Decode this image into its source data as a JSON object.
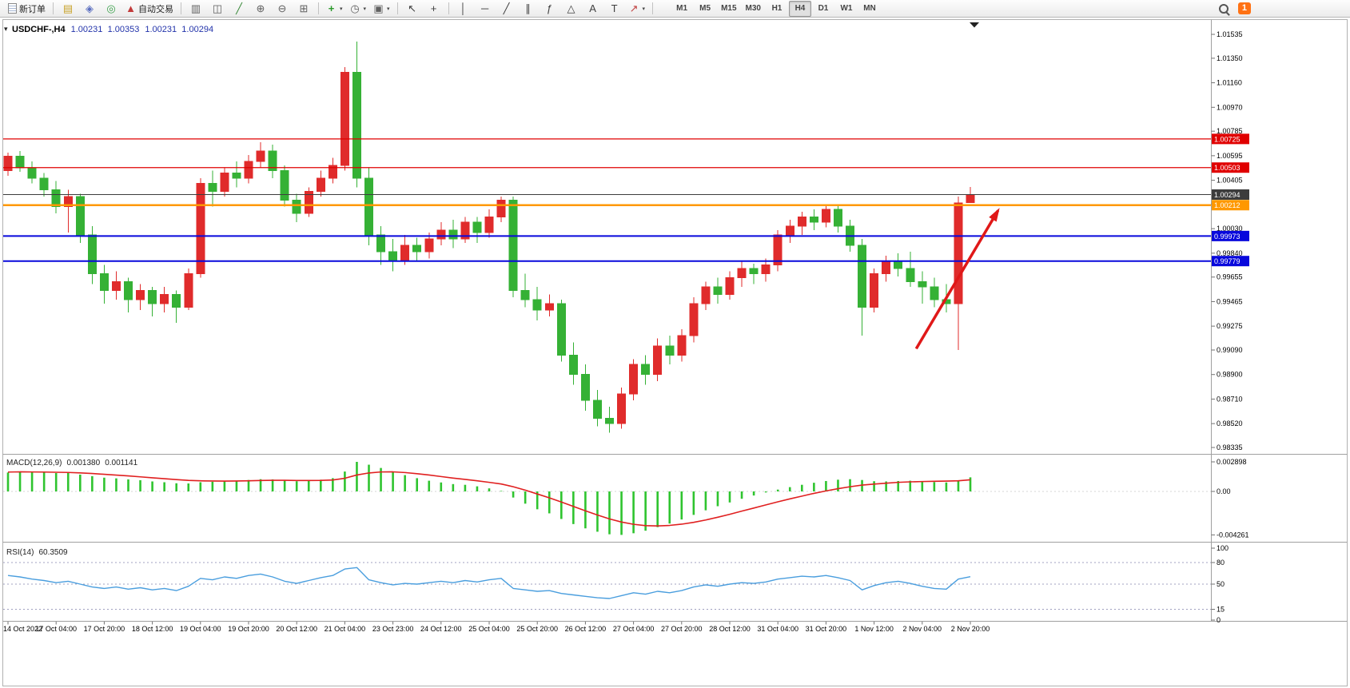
{
  "app": {
    "toolbar": {
      "items": [
        {
          "name": "new-order-button",
          "icon": "doc",
          "label": "新订单"
        },
        {
          "type": "sep"
        },
        {
          "name": "market-watch-button",
          "icon": "market-watch"
        },
        {
          "name": "navigator-button",
          "icon": "navigator"
        },
        {
          "name": "terminal-button",
          "icon": "terminal"
        },
        {
          "name": "auto-trading-button",
          "icon": "auto-trading",
          "label": "自动交易"
        },
        {
          "type": "sep"
        },
        {
          "name": "bar-chart-button",
          "icon": "bar-chart"
        },
        {
          "name": "candlestick-chart-button",
          "icon": "candlestick"
        },
        {
          "name": "line-chart-button",
          "icon": "line-chart"
        },
        {
          "name": "zoom-in-button",
          "icon": "zoom-in"
        },
        {
          "name": "zoom-out-button",
          "icon": "zoom-out"
        },
        {
          "name": "tile-windows-button",
          "icon": "tile"
        },
        {
          "type": "sep"
        },
        {
          "name": "indicators-button",
          "icon": "indicators",
          "dropdown": true
        },
        {
          "name": "periods-button",
          "icon": "clock",
          "dropdown": true
        },
        {
          "name": "templates-button",
          "icon": "template",
          "dropdown": true
        },
        {
          "type": "sep"
        },
        {
          "name": "cursor-button",
          "icon": "cursor"
        },
        {
          "name": "crosshair-button",
          "icon": "crosshair"
        },
        {
          "type": "sep"
        },
        {
          "name": "vertical-line-button",
          "icon": "vline"
        },
        {
          "name": "horizontal-line-button",
          "icon": "hline"
        },
        {
          "name": "trendline-button",
          "icon": "trendline"
        },
        {
          "name": "channel-button",
          "icon": "channel"
        },
        {
          "name": "fibonacci-button",
          "icon": "fibonacci"
        },
        {
          "name": "shapes-button",
          "icon": "shapes"
        },
        {
          "name": "text-button",
          "icon": "text"
        },
        {
          "name": "text-label-button",
          "icon": "text-label"
        },
        {
          "name": "arrows-button",
          "icon": "arrows",
          "dropdown": true
        },
        {
          "type": "sep"
        }
      ],
      "timeframes": [
        "M1",
        "M5",
        "M15",
        "M30",
        "H1",
        "H4",
        "D1",
        "W1",
        "MN"
      ],
      "active_timeframe": "H4",
      "notification_count": "1"
    }
  },
  "chart_data": {
    "type": "candlestick",
    "symbol": "USDCHF-",
    "timeframe": "H4",
    "title": "USDCHF-,H4",
    "quote": {
      "open": "1.00231",
      "high": "1.00353",
      "low": "1.00231",
      "close": "1.00294"
    },
    "colors": {
      "up": "#e02b2b",
      "down": "#35b135"
    },
    "price_scale": {
      "ticks": [
        "1.01535",
        "1.01350",
        "1.01160",
        "1.00970",
        "1.00785",
        "1.00595",
        "1.00405",
        "1.00220",
        "1.00030",
        "0.99840",
        "0.99655",
        "0.99465",
        "0.99275",
        "0.99090",
        "0.98900",
        "0.98710",
        "0.98520",
        "0.98335"
      ]
    },
    "time_labels": [
      "14 Oct 2022",
      "17 Oct 04:00",
      "17 Oct 20:00",
      "18 Oct 12:00",
      "19 Oct 04:00",
      "19 Oct 20:00",
      "20 Oct 12:00",
      "21 Oct 04:00",
      "23 Oct 23:00",
      "24 Oct 12:00",
      "25 Oct 04:00",
      "25 Oct 20:00",
      "26 Oct 12:00",
      "27 Oct 04:00",
      "27 Oct 20:00",
      "28 Oct 12:00",
      "31 Oct 04:00",
      "31 Oct 20:00",
      "1 Nov 12:00",
      "2 Nov 04:00",
      "2 Nov 20:00"
    ],
    "label_every_n_bars": 4,
    "candles": [
      [
        1.0048,
        1.0062,
        1.0044,
        1.0059
      ],
      [
        1.0059,
        1.0063,
        1.0047,
        1.005
      ],
      [
        1.005,
        1.0055,
        1.0038,
        1.0042
      ],
      [
        1.0042,
        1.0046,
        1.0028,
        1.0033
      ],
      [
        1.0033,
        1.004,
        1.0015,
        1.002
      ],
      [
        1.002,
        1.0033,
        1.0,
        1.0028
      ],
      [
        1.0028,
        1.003,
        0.9992,
        0.9998
      ],
      [
        0.9998,
        1.0005,
        0.996,
        0.9968
      ],
      [
        0.9968,
        0.9975,
        0.9945,
        0.9955
      ],
      [
        0.9955,
        0.997,
        0.9948,
        0.9962
      ],
      [
        0.9962,
        0.9965,
        0.9938,
        0.9948
      ],
      [
        0.9948,
        0.996,
        0.994,
        0.9955
      ],
      [
        0.9955,
        0.9958,
        0.9935,
        0.9945
      ],
      [
        0.9945,
        0.9958,
        0.9938,
        0.9952
      ],
      [
        0.9952,
        0.9955,
        0.993,
        0.9942
      ],
      [
        0.9942,
        0.9972,
        0.994,
        0.9968
      ],
      [
        0.9968,
        1.0042,
        0.9965,
        1.0038
      ],
      [
        1.0038,
        1.0048,
        1.002,
        1.0032
      ],
      [
        1.0032,
        1.005,
        1.0028,
        1.0046
      ],
      [
        1.0046,
        1.0055,
        1.0035,
        1.0042
      ],
      [
        1.0042,
        1.006,
        1.0038,
        1.0055
      ],
      [
        1.0055,
        1.007,
        1.005,
        1.0063
      ],
      [
        1.0063,
        1.0068,
        1.0042,
        1.0048
      ],
      [
        1.0048,
        1.0052,
        1.002,
        1.0025
      ],
      [
        1.0025,
        1.003,
        1.0008,
        1.0015
      ],
      [
        1.0015,
        1.0035,
        1.0012,
        1.0032
      ],
      [
        1.0032,
        1.0048,
        1.0028,
        1.0042
      ],
      [
        1.0042,
        1.0058,
        1.0038,
        1.0052
      ],
      [
        1.0052,
        1.0128,
        1.0048,
        1.0124
      ],
      [
        1.0124,
        1.0148,
        1.0035,
        1.0042
      ],
      [
        1.0042,
        1.005,
        0.999,
        0.9998
      ],
      [
        0.9998,
        1.0005,
        0.9975,
        0.9985
      ],
      [
        0.9985,
        0.9995,
        0.997,
        0.9978
      ],
      [
        0.9978,
        0.9998,
        0.9975,
        0.999
      ],
      [
        0.999,
        0.9996,
        0.9978,
        0.9985
      ],
      [
        0.9985,
        1.0,
        0.998,
        0.9995
      ],
      [
        0.9995,
        1.0008,
        0.999,
        1.0002
      ],
      [
        1.0002,
        1.001,
        0.9988,
        0.9995
      ],
      [
        0.9995,
        1.0012,
        0.9992,
        1.0008
      ],
      [
        1.0008,
        1.0012,
        0.9992,
        1.0
      ],
      [
        1.0,
        1.0018,
        0.9996,
        1.0012
      ],
      [
        1.0012,
        1.0028,
        1.0008,
        1.0025
      ],
      [
        1.0025,
        1.0028,
        0.995,
        0.9955
      ],
      [
        0.9955,
        0.9968,
        0.9942,
        0.9948
      ],
      [
        0.9948,
        0.9958,
        0.9932,
        0.994
      ],
      [
        0.994,
        0.9952,
        0.9935,
        0.9945
      ],
      [
        0.9945,
        0.9948,
        0.99,
        0.9905
      ],
      [
        0.9905,
        0.9915,
        0.9882,
        0.989
      ],
      [
        0.989,
        0.9898,
        0.9862,
        0.987
      ],
      [
        0.987,
        0.9878,
        0.985,
        0.9856
      ],
      [
        0.9856,
        0.9865,
        0.9845,
        0.9852
      ],
      [
        0.9852,
        0.988,
        0.9848,
        0.9875
      ],
      [
        0.9875,
        0.9902,
        0.987,
        0.9898
      ],
      [
        0.9898,
        0.9905,
        0.9882,
        0.989
      ],
      [
        0.989,
        0.9918,
        0.9885,
        0.9912
      ],
      [
        0.9912,
        0.992,
        0.9898,
        0.9905
      ],
      [
        0.9905,
        0.9925,
        0.99,
        0.992
      ],
      [
        0.992,
        0.995,
        0.9915,
        0.9945
      ],
      [
        0.9945,
        0.9962,
        0.994,
        0.9958
      ],
      [
        0.9958,
        0.9965,
        0.9945,
        0.9952
      ],
      [
        0.9952,
        0.997,
        0.9948,
        0.9965
      ],
      [
        0.9965,
        0.9978,
        0.9958,
        0.9972
      ],
      [
        0.9972,
        0.9976,
        0.996,
        0.9968
      ],
      [
        0.9968,
        0.998,
        0.9962,
        0.9975
      ],
      [
        0.9975,
        1.0002,
        0.997,
        0.9998
      ],
      [
        0.9998,
        1.001,
        0.9992,
        1.0005
      ],
      [
        1.0005,
        1.0016,
        0.9998,
        1.0012
      ],
      [
        1.0012,
        1.0018,
        1.0002,
        1.0008
      ],
      [
        1.0008,
        1.0022,
        1.0004,
        1.0018
      ],
      [
        1.0018,
        1.0022,
        1.0,
        1.0005
      ],
      [
        1.0005,
        1.001,
        0.9985,
        0.999
      ],
      [
        0.999,
        0.9995,
        0.992,
        0.9942
      ],
      [
        0.9942,
        0.9972,
        0.9938,
        0.9968
      ],
      [
        0.9968,
        0.9982,
        0.9962,
        0.9978
      ],
      [
        0.9978,
        0.9984,
        0.9966,
        0.9972
      ],
      [
        0.9972,
        0.9985,
        0.9958,
        0.9962
      ],
      [
        0.9962,
        0.997,
        0.9945,
        0.9958
      ],
      [
        0.9958,
        0.9965,
        0.9942,
        0.9948
      ],
      [
        0.9948,
        0.996,
        0.9938,
        0.9945
      ],
      [
        0.9945,
        1.0028,
        0.9909,
        1.0023
      ],
      [
        1.00231,
        1.00353,
        1.00231,
        1.00294
      ]
    ],
    "levels": [
      {
        "price": 1.00725,
        "color": "#e00000",
        "width": 1.2,
        "name": "resistance-line-upper"
      },
      {
        "price": 1.00503,
        "color": "#e00000",
        "width": 1.2,
        "name": "resistance-line-lower"
      },
      {
        "price": 1.00212,
        "color": "#ff9800",
        "width": 2.6,
        "name": "pivot-line-orange"
      },
      {
        "price": 0.99973,
        "color": "#0808dc",
        "width": 2,
        "name": "support-line-upper"
      },
      {
        "price": 0.99779,
        "color": "#0808dc",
        "width": 2,
        "name": "support-line-lower"
      }
    ],
    "current_price": {
      "value": 1.00294,
      "badge_color": "#3c3c3c"
    },
    "annotations": {
      "trend_arrow": {
        "from_bar": 75.5,
        "from_price": 0.991,
        "to_bar": 82.3,
        "to_price": 1.0017,
        "color": "#e01818",
        "width": 3.5
      }
    },
    "indicators": {
      "macd": {
        "label": "MACD(12,26,9)",
        "main_value": "0.001380",
        "signal_value": "0.001141",
        "scale_labels": [
          "0.002898",
          "0.00",
          "-0.004261"
        ],
        "histogram_color": "#2fc42f",
        "signal_color": "#e02020",
        "histogram": [
          0.00185,
          0.00195,
          0.0019,
          0.00188,
          0.0018,
          0.00182,
          0.00165,
          0.0015,
          0.00135,
          0.00128,
          0.00118,
          0.0011,
          0.00098,
          0.0009,
          0.0008,
          0.00078,
          0.0009,
          0.00095,
          0.001,
          0.00105,
          0.00112,
          0.0012,
          0.00118,
          0.00108,
          0.001,
          0.00105,
          0.00115,
          0.0013,
          0.00195,
          0.002898,
          0.00262,
          0.0023,
          0.00195,
          0.0016,
          0.0013,
          0.00105,
          0.00088,
          0.00072,
          0.00065,
          0.0005,
          0.0003,
          5e-05,
          -0.0006,
          -0.0012,
          -0.00175,
          -0.00215,
          -0.0027,
          -0.0032,
          -0.00362,
          -0.00395,
          -0.0042,
          -0.004261,
          -0.0041,
          -0.00385,
          -0.0035,
          -0.00315,
          -0.00275,
          -0.0023,
          -0.00185,
          -0.00145,
          -0.00108,
          -0.00072,
          -0.0004,
          -0.0001,
          0.00018,
          0.00042,
          0.00065,
          0.00085,
          0.00102,
          0.00115,
          0.0012,
          0.00112,
          0.001,
          0.00098,
          0.00102,
          0.00105,
          0.001,
          0.00092,
          0.00088,
          0.0011,
          0.00138
        ],
        "signal": [
          0.0019,
          0.00192,
          0.00191,
          0.0019,
          0.00188,
          0.00186,
          0.00182,
          0.00176,
          0.00168,
          0.0016,
          0.00152,
          0.00143,
          0.00134,
          0.00125,
          0.00116,
          0.00108,
          0.00104,
          0.00102,
          0.00101,
          0.00102,
          0.00104,
          0.00107,
          0.00109,
          0.00109,
          0.00107,
          0.00107,
          0.00108,
          0.00112,
          0.00129,
          0.00161,
          0.00181,
          0.00191,
          0.00192,
          0.00185,
          0.00174,
          0.00161,
          0.00146,
          0.00131,
          0.00118,
          0.00104,
          0.00089,
          0.00073,
          0.00046,
          0.00013,
          -0.00025,
          -0.00063,
          -0.00104,
          -0.00147,
          -0.0019,
          -0.00231,
          -0.00269,
          -0.003,
          -0.00322,
          -0.00335,
          -0.00338,
          -0.00333,
          -0.00321,
          -0.00303,
          -0.0028,
          -0.00253,
          -0.00224,
          -0.00193,
          -0.00163,
          -0.00132,
          -0.00102,
          -0.00073,
          -0.00046,
          -0.00019,
          5e-05,
          0.00027,
          0.00046,
          0.00062,
          0.00072,
          0.00081,
          0.00089,
          0.00094,
          0.00097,
          0.00099,
          0.00101,
          0.00104,
          0.001141
        ]
      },
      "rsi": {
        "label": "RSI(14)",
        "value": "60.3509",
        "levels": [
          80,
          50,
          15
        ],
        "scale_labels": [
          "100",
          "80",
          "50",
          "15",
          "0"
        ],
        "line_color": "#4a9ede",
        "values": [
          62,
          60,
          57,
          55,
          52,
          54,
          50,
          46,
          44,
          46,
          43,
          45,
          42,
          44,
          41,
          47,
          58,
          56,
          60,
          58,
          62,
          64,
          60,
          54,
          51,
          55,
          59,
          62,
          71,
          73,
          56,
          52,
          49,
          51,
          50,
          52,
          54,
          52,
          55,
          53,
          56,
          58,
          44,
          42,
          40,
          41,
          37,
          35,
          33,
          31,
          30,
          34,
          38,
          36,
          40,
          38,
          41,
          46,
          49,
          47,
          50,
          52,
          51,
          53,
          57,
          59,
          61,
          60,
          62,
          59,
          55,
          42,
          48,
          52,
          54,
          51,
          47,
          44,
          43,
          57,
          60.3509
        ]
      }
    }
  }
}
